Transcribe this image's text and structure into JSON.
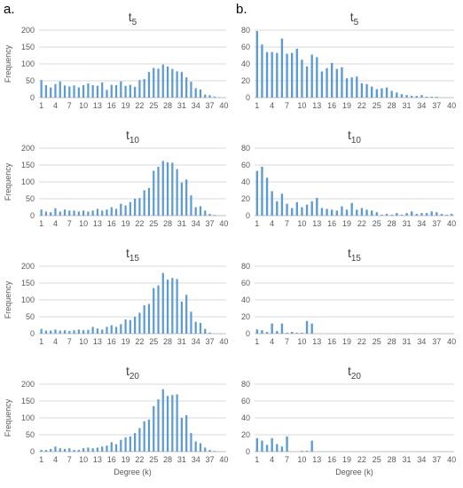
{
  "panel_labels": [
    "a.",
    "b."
  ],
  "chart_data": [
    {
      "type": "bar",
      "panel": "a.",
      "title": "t",
      "subscript": "5",
      "ylabel": "Frequency",
      "xlabel": "",
      "ylim": [
        0,
        200
      ],
      "yticks": [
        0,
        50,
        100,
        150,
        200
      ],
      "x": [
        1,
        2,
        3,
        4,
        5,
        6,
        7,
        8,
        9,
        10,
        11,
        12,
        13,
        14,
        15,
        16,
        17,
        18,
        19,
        20,
        21,
        22,
        23,
        24,
        25,
        26,
        27,
        28,
        29,
        30,
        31,
        32,
        33,
        34,
        35,
        36,
        37,
        38,
        39,
        40
      ],
      "xtick_labels": [
        "1",
        "4",
        "7",
        "10",
        "13",
        "16",
        "19",
        "22",
        "25",
        "28",
        "31",
        "34",
        "37",
        "40"
      ],
      "values": [
        52,
        37,
        30,
        40,
        48,
        36,
        33,
        36,
        30,
        37,
        42,
        37,
        35,
        45,
        23,
        38,
        37,
        48,
        35,
        38,
        32,
        52,
        55,
        76,
        88,
        86,
        98,
        92,
        85,
        78,
        76,
        60,
        47,
        28,
        24,
        9,
        7,
        3,
        1,
        0
      ]
    },
    {
      "type": "bar",
      "panel": "b.",
      "title": "t",
      "subscript": "5",
      "ylabel": "",
      "xlabel": "",
      "ylim": [
        0,
        80
      ],
      "yticks": [
        0,
        20,
        40,
        60,
        80
      ],
      "x": [
        1,
        2,
        3,
        4,
        5,
        6,
        7,
        8,
        9,
        10,
        11,
        12,
        13,
        14,
        15,
        16,
        17,
        18,
        19,
        20,
        21,
        22,
        23,
        24,
        25,
        26,
        27,
        28,
        29,
        30,
        31,
        32,
        33,
        34,
        35,
        36,
        37,
        38,
        39,
        40
      ],
      "xtick_labels": [
        "1",
        "4",
        "7",
        "10",
        "13",
        "16",
        "19",
        "22",
        "25",
        "28",
        "31",
        "34",
        "37",
        "40"
      ],
      "values": [
        79,
        63,
        54,
        54,
        53,
        70,
        52,
        53,
        58,
        45,
        37,
        51,
        48,
        31,
        35,
        41,
        34,
        36,
        23,
        24,
        25,
        17,
        16,
        13,
        10,
        11,
        12,
        8,
        6,
        4,
        3,
        2,
        2,
        3,
        1,
        1,
        1,
        0,
        0,
        0
      ]
    },
    {
      "type": "bar",
      "panel": "a.",
      "title": "t",
      "subscript": "10",
      "ylabel": "Frequency",
      "xlabel": "",
      "ylim": [
        0,
        200
      ],
      "yticks": [
        0,
        50,
        100,
        150,
        200
      ],
      "x": [
        1,
        2,
        3,
        4,
        5,
        6,
        7,
        8,
        9,
        10,
        11,
        12,
        13,
        14,
        15,
        16,
        17,
        18,
        19,
        20,
        21,
        22,
        23,
        24,
        25,
        26,
        27,
        28,
        29,
        30,
        31,
        32,
        33,
        34,
        35,
        36,
        37,
        38,
        39,
        40
      ],
      "xtick_labels": [
        "1",
        "4",
        "7",
        "10",
        "13",
        "16",
        "19",
        "22",
        "25",
        "28",
        "31",
        "34",
        "37",
        "40"
      ],
      "values": [
        18,
        12,
        10,
        22,
        12,
        18,
        15,
        15,
        12,
        15,
        12,
        15,
        20,
        15,
        18,
        25,
        20,
        35,
        30,
        40,
        50,
        52,
        75,
        82,
        133,
        145,
        162,
        158,
        157,
        138,
        98,
        107,
        60,
        25,
        28,
        15,
        5,
        2,
        0,
        0
      ]
    },
    {
      "type": "bar",
      "panel": "b.",
      "title": "t",
      "subscript": "10",
      "ylabel": "",
      "xlabel": "",
      "ylim": [
        0,
        80
      ],
      "yticks": [
        0,
        20,
        40,
        60,
        80
      ],
      "x": [
        1,
        2,
        3,
        4,
        5,
        6,
        7,
        8,
        9,
        10,
        11,
        12,
        13,
        14,
        15,
        16,
        17,
        18,
        19,
        20,
        21,
        22,
        23,
        24,
        25,
        26,
        27,
        28,
        29,
        30,
        31,
        32,
        33,
        34,
        35,
        36,
        37,
        38,
        39,
        40
      ],
      "xtick_labels": [
        "1",
        "4",
        "7",
        "10",
        "13",
        "16",
        "19",
        "22",
        "25",
        "28",
        "31",
        "34",
        "37",
        "40"
      ],
      "values": [
        53,
        58,
        45,
        29,
        17,
        26,
        14,
        9,
        16,
        10,
        13,
        17,
        21,
        9,
        8,
        7,
        6,
        11,
        7,
        15,
        7,
        9,
        7,
        6,
        4,
        1,
        2,
        1,
        3,
        1,
        3,
        5,
        2,
        3,
        3,
        5,
        4,
        2,
        1,
        2
      ]
    },
    {
      "type": "bar",
      "panel": "a.",
      "title": "t",
      "subscript": "15",
      "ylabel": "Frequency",
      "xlabel": "",
      "ylim": [
        0,
        200
      ],
      "yticks": [
        0,
        50,
        100,
        150,
        200
      ],
      "x": [
        1,
        2,
        3,
        4,
        5,
        6,
        7,
        8,
        9,
        10,
        11,
        12,
        13,
        14,
        15,
        16,
        17,
        18,
        19,
        20,
        21,
        22,
        23,
        24,
        25,
        26,
        27,
        28,
        29,
        30,
        31,
        32,
        33,
        34,
        35,
        36,
        37,
        38,
        39,
        40
      ],
      "xtick_labels": [
        "1",
        "4",
        "7",
        "10",
        "13",
        "16",
        "19",
        "22",
        "25",
        "28",
        "31",
        "34",
        "37",
        "40"
      ],
      "values": [
        14,
        9,
        9,
        12,
        9,
        10,
        8,
        10,
        12,
        10,
        11,
        20,
        15,
        12,
        20,
        25,
        20,
        28,
        42,
        40,
        50,
        62,
        84,
        88,
        135,
        143,
        180,
        160,
        165,
        162,
        95,
        115,
        65,
        35,
        32,
        14,
        3,
        0,
        0,
        0
      ]
    },
    {
      "type": "bar",
      "panel": "b.",
      "title": "t",
      "subscript": "15",
      "ylabel": "",
      "xlabel": "",
      "ylim": [
        0,
        80
      ],
      "yticks": [
        0,
        20,
        40,
        60,
        80
      ],
      "x": [
        1,
        2,
        3,
        4,
        5,
        6,
        7,
        8,
        9,
        10,
        11,
        12,
        13,
        14,
        15,
        16,
        17,
        18,
        19,
        20,
        21,
        22,
        23,
        24,
        25,
        26,
        27,
        28,
        29,
        30,
        31,
        32,
        33,
        34,
        35,
        36,
        37,
        38,
        39,
        40
      ],
      "xtick_labels": [
        "1",
        "4",
        "7",
        "10",
        "13",
        "16",
        "19",
        "22",
        "25",
        "28",
        "31",
        "34",
        "37",
        "40"
      ],
      "values": [
        5,
        4,
        2,
        12,
        3,
        12,
        1,
        2,
        1,
        1,
        15,
        12,
        0,
        0,
        0,
        0,
        0,
        0,
        0,
        0,
        0,
        0,
        0,
        0,
        0,
        0,
        0,
        0,
        0,
        0,
        0,
        0,
        0,
        0,
        0,
        0,
        0,
        0,
        0,
        0
      ]
    },
    {
      "type": "bar",
      "panel": "a.",
      "title": "t",
      "subscript": "20",
      "ylabel": "Frequency",
      "xlabel": "Degree (k)",
      "ylim": [
        0,
        200
      ],
      "yticks": [
        0,
        50,
        100,
        150,
        200
      ],
      "x": [
        1,
        2,
        3,
        4,
        5,
        6,
        7,
        8,
        9,
        10,
        11,
        12,
        13,
        14,
        15,
        16,
        17,
        18,
        19,
        20,
        21,
        22,
        23,
        24,
        25,
        26,
        27,
        28,
        29,
        30,
        31,
        32,
        33,
        34,
        35,
        36,
        37,
        38,
        39,
        40
      ],
      "xtick_labels": [
        "1",
        "4",
        "7",
        "10",
        "13",
        "16",
        "19",
        "22",
        "25",
        "28",
        "31",
        "34",
        "37",
        "40"
      ],
      "values": [
        5,
        5,
        8,
        15,
        10,
        8,
        10,
        5,
        5,
        10,
        12,
        10,
        12,
        15,
        18,
        28,
        22,
        35,
        42,
        45,
        55,
        70,
        90,
        95,
        135,
        155,
        185,
        165,
        168,
        170,
        100,
        108,
        55,
        30,
        25,
        12,
        5,
        2,
        0,
        0
      ]
    },
    {
      "type": "bar",
      "panel": "b.",
      "title": "t",
      "subscript": "20",
      "ylabel": "",
      "xlabel": "Degree (k)",
      "ylim": [
        0,
        80
      ],
      "yticks": [
        0,
        20,
        40,
        60,
        80
      ],
      "x": [
        1,
        2,
        3,
        4,
        5,
        6,
        7,
        8,
        9,
        10,
        11,
        12,
        13,
        14,
        15,
        16,
        17,
        18,
        19,
        20,
        21,
        22,
        23,
        24,
        25,
        26,
        27,
        28,
        29,
        30,
        31,
        32,
        33,
        34,
        35,
        36,
        37,
        38,
        39,
        40
      ],
      "xtick_labels": [
        "1",
        "4",
        "7",
        "10",
        "13",
        "16",
        "19",
        "22",
        "25",
        "28",
        "31",
        "34",
        "37",
        "40"
      ],
      "values": [
        16,
        13,
        8,
        16,
        9,
        6,
        18,
        0,
        0,
        1,
        1,
        13,
        0,
        0,
        0,
        0,
        0,
        0,
        0,
        0,
        0,
        0,
        0,
        0,
        0,
        0,
        0,
        0,
        0,
        0,
        0,
        0,
        0,
        0,
        0,
        0,
        0,
        0,
        0,
        0
      ]
    }
  ],
  "colors": {
    "bar": "#5b9bd5",
    "grid": "#d9d9d9",
    "axis": "#bfbfbf",
    "text": "#595959",
    "title": "#404040"
  }
}
